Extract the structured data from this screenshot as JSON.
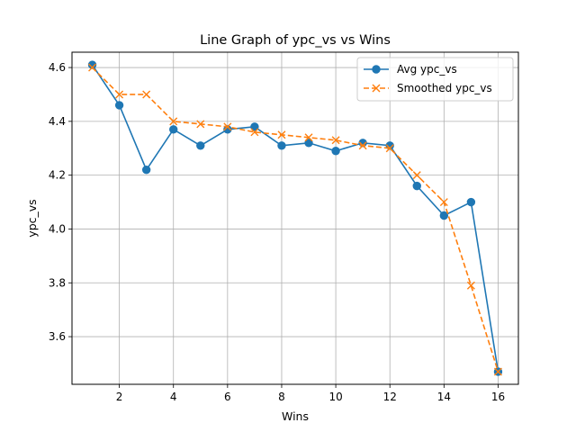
{
  "chart_data": {
    "type": "line",
    "title": "Line Graph of ypc_vs vs Wins",
    "xlabel": "Wins",
    "ylabel": "ypc_vs",
    "xlim": [
      0.25,
      16.75
    ],
    "ylim": [
      3.423,
      4.657
    ],
    "xticks": [
      2,
      4,
      6,
      8,
      10,
      12,
      14,
      16
    ],
    "yticks": [
      3.6,
      3.8,
      4.0,
      4.2,
      4.4,
      4.6
    ],
    "xtick_labels": [
      "2",
      "4",
      "6",
      "8",
      "10",
      "12",
      "14",
      "16"
    ],
    "ytick_labels": [
      "3.6",
      "3.8",
      "4.0",
      "4.2",
      "4.4",
      "4.6"
    ],
    "grid": true,
    "legend_position": "top-right",
    "x": [
      1,
      2,
      3,
      4,
      5,
      6,
      7,
      8,
      9,
      10,
      11,
      12,
      13,
      14,
      15,
      16
    ],
    "series": [
      {
        "name": "Avg ypc_vs",
        "color": "#1f77b4",
        "line_style": "solid",
        "marker": "circle",
        "values": [
          4.61,
          4.46,
          4.22,
          4.37,
          4.31,
          4.37,
          4.38,
          4.31,
          4.32,
          4.29,
          4.32,
          4.31,
          4.16,
          4.05,
          4.1,
          3.47
        ]
      },
      {
        "name": "Smoothed ypc_vs",
        "color": "#ff7f0e",
        "line_style": "dashed",
        "marker": "x",
        "values": [
          4.6,
          4.5,
          4.5,
          4.4,
          4.39,
          4.38,
          4.36,
          4.35,
          4.34,
          4.33,
          4.31,
          4.3,
          4.2,
          4.1,
          3.79,
          3.47
        ]
      }
    ]
  }
}
